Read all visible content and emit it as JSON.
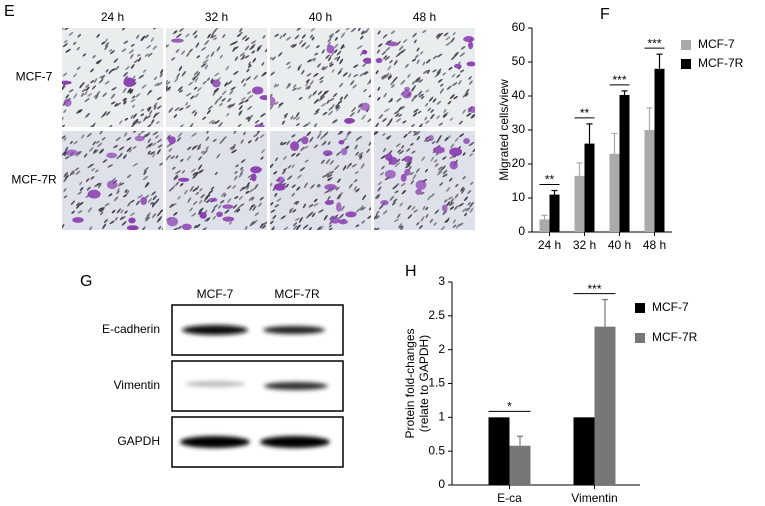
{
  "panel_e": {
    "label": "E",
    "columns": [
      "24 h",
      "32 h",
      "40 h",
      "48 h"
    ],
    "rows": [
      "MCF-7",
      "MCF-7R"
    ]
  },
  "panel_g": {
    "label": "G",
    "lanes": [
      "MCF-7",
      "MCF-7R"
    ],
    "proteins": [
      "E-cadherin",
      "Vimentin",
      "GAPDH"
    ]
  },
  "chart_data": [
    {
      "type": "bar",
      "panel_label": "F",
      "ylabel": [
        "Migrated cells/view"
      ],
      "categories": [
        "24 h",
        "32 h",
        "40 h",
        "48 h"
      ],
      "series": [
        {
          "name": "MCF-7",
          "color": "#aaaaaa",
          "values": [
            3.7,
            16.5,
            23,
            30
          ],
          "errors": [
            1.2,
            3.8,
            6,
            6.5
          ]
        },
        {
          "name": "MCF-7R",
          "color": "#000000",
          "values": [
            11,
            26,
            40.3,
            48
          ],
          "errors": [
            1.2,
            5.8,
            1.2,
            4.3
          ]
        }
      ],
      "significance": [
        "**",
        "**",
        "***",
        "***"
      ],
      "ylim": [
        0,
        60
      ],
      "yticks": [
        0,
        10,
        20,
        30,
        40,
        50,
        60
      ],
      "legend": "upper right"
    },
    {
      "type": "bar",
      "panel_label": "H",
      "ylabel": [
        "Protein fold-changes",
        "(relate to GAPDH)"
      ],
      "categories": [
        "E-ca",
        "Vimentin"
      ],
      "series": [
        {
          "name": "MCF-7",
          "color": "#000000",
          "values": [
            1,
            1
          ]
        },
        {
          "name": "MCF-7R",
          "color": "#777777",
          "values": [
            0.58,
            2.34
          ],
          "errors": [
            0.14,
            0.4
          ]
        }
      ],
      "significance": [
        "*",
        "***"
      ],
      "ylim": [
        0,
        3
      ],
      "yticks": [
        0,
        0.5,
        1,
        1.5,
        2,
        2.5,
        3
      ],
      "legend": "upper right"
    }
  ]
}
